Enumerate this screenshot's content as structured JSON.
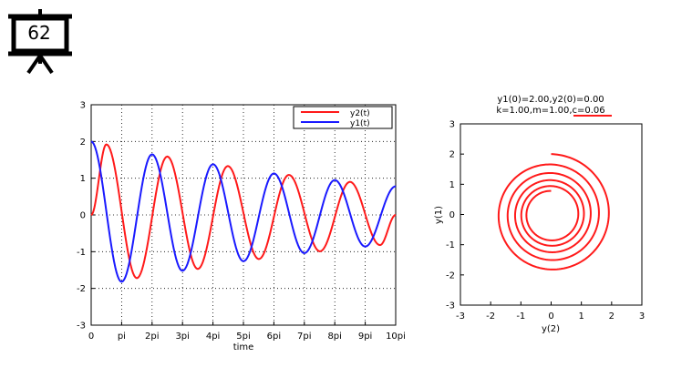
{
  "slide": {
    "number": "62",
    "icon": "presentation-board-icon"
  },
  "chart_data": [
    {
      "type": "line",
      "title": "",
      "xlabel": "time",
      "ylabel": "",
      "xlim": [
        0,
        31.4159
      ],
      "ylim": [
        -3,
        3
      ],
      "x_ticks": [
        "0",
        "pi",
        "2pi",
        "3pi",
        "4pi",
        "5pi",
        "6pi",
        "7pi",
        "8pi",
        "9pi",
        "10pi"
      ],
      "y_ticks": [
        "-3",
        "-2",
        "-1",
        "0",
        "1",
        "2",
        "3"
      ],
      "grid": true,
      "legend": "top-right",
      "series": [
        {
          "name": "y2(t)",
          "color": "#ff1a1a",
          "x": [
            0,
            1.57,
            4.71,
            7.85,
            11.0,
            14.1,
            17.3,
            20.4,
            23.6,
            26.7,
            29.8,
            31.42
          ],
          "values": [
            0,
            1.92,
            -1.72,
            1.59,
            -1.47,
            1.33,
            -1.2,
            1.09,
            -0.99,
            0.9,
            -0.82,
            0
          ]
        },
        {
          "name": "y1(t)",
          "color": "#1a1aff",
          "x": [
            0,
            3.14,
            6.28,
            9.42,
            12.57,
            15.71,
            18.85,
            21.99,
            25.13,
            28.27,
            31.42
          ],
          "values": [
            2.0,
            -1.82,
            1.65,
            -1.52,
            1.38,
            -1.26,
            1.13,
            -1.04,
            0.95,
            -0.86,
            0.78
          ]
        }
      ]
    },
    {
      "type": "line",
      "title": "y1(0)=2.00,y2(0)=0.00",
      "subtitle": "k=1.00,m=1.00,c=0.06",
      "xlabel": "y(2)",
      "ylabel": "y(1)",
      "xlim": [
        -3,
        3
      ],
      "ylim": [
        -3,
        3
      ],
      "x_ticks": [
        "-3",
        "-2",
        "-1",
        "0",
        "1",
        "2",
        "3"
      ],
      "y_ticks": [
        "-3",
        "-2",
        "-1",
        "0",
        "1",
        "2",
        "3"
      ],
      "grid": false,
      "series": [
        {
          "name": "",
          "color": "#ff1a1a",
          "description": "phase-plane spiral from (0, 2.0) decaying to about (0, 0.78)",
          "start": [
            0,
            2.0
          ],
          "end": [
            0,
            0.78
          ],
          "damping_c": 0.06,
          "t_max": 31.4159
        }
      ]
    }
  ]
}
